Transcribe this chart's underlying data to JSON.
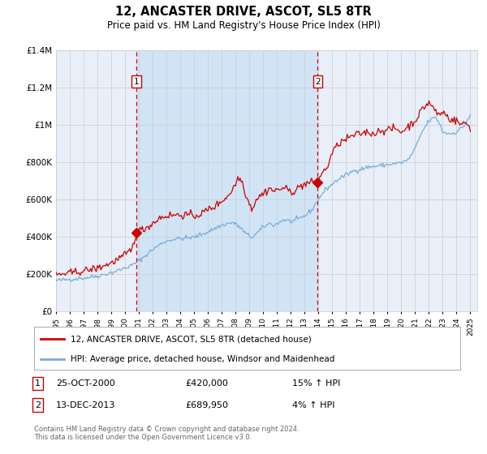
{
  "title": "12, ANCASTER DRIVE, ASCOT, SL5 8TR",
  "subtitle": "Price paid vs. HM Land Registry's House Price Index (HPI)",
  "legend_line1": "12, ANCASTER DRIVE, ASCOT, SL5 8TR (detached house)",
  "legend_line2": "HPI: Average price, detached house, Windsor and Maidenhead",
  "transaction1_date": "25-OCT-2000",
  "transaction1_price": "£420,000",
  "transaction1_hpi": "15% ↑ HPI",
  "transaction2_date": "13-DEC-2013",
  "transaction2_price": "£689,950",
  "transaction2_hpi": "4% ↑ HPI",
  "footer": "Contains HM Land Registry data © Crown copyright and database right 2024.\nThis data is licensed under the Open Government Licence v3.0.",
  "background_color": "#ffffff",
  "plot_bg_color": "#e8eff8",
  "span_color": "#d0e4f5",
  "red_line_color": "#cc0000",
  "blue_line_color": "#7aacda",
  "dashed_line_color": "#dd0000",
  "grid_color": "#cccccc",
  "marker_color": "#cc0000",
  "sale1_t": 2000.82,
  "sale2_t": 2013.95,
  "sale1_price": 420000,
  "sale2_price": 689950,
  "ylim_min": 0,
  "ylim_max": 1400000,
  "xlim_min": 1995.0,
  "xlim_max": 2025.5,
  "yticks": [
    0,
    200000,
    400000,
    600000,
    800000,
    1000000,
    1200000,
    1400000
  ],
  "ytick_labels": [
    "£0",
    "£200K",
    "£400K",
    "£600K",
    "£800K",
    "£1M",
    "£1.2M",
    "£1.4M"
  ],
  "xticks": [
    1995,
    1996,
    1997,
    1998,
    1999,
    2000,
    2001,
    2002,
    2003,
    2004,
    2005,
    2006,
    2007,
    2008,
    2009,
    2010,
    2011,
    2012,
    2013,
    2014,
    2015,
    2016,
    2017,
    2018,
    2019,
    2020,
    2021,
    2022,
    2023,
    2024,
    2025
  ]
}
